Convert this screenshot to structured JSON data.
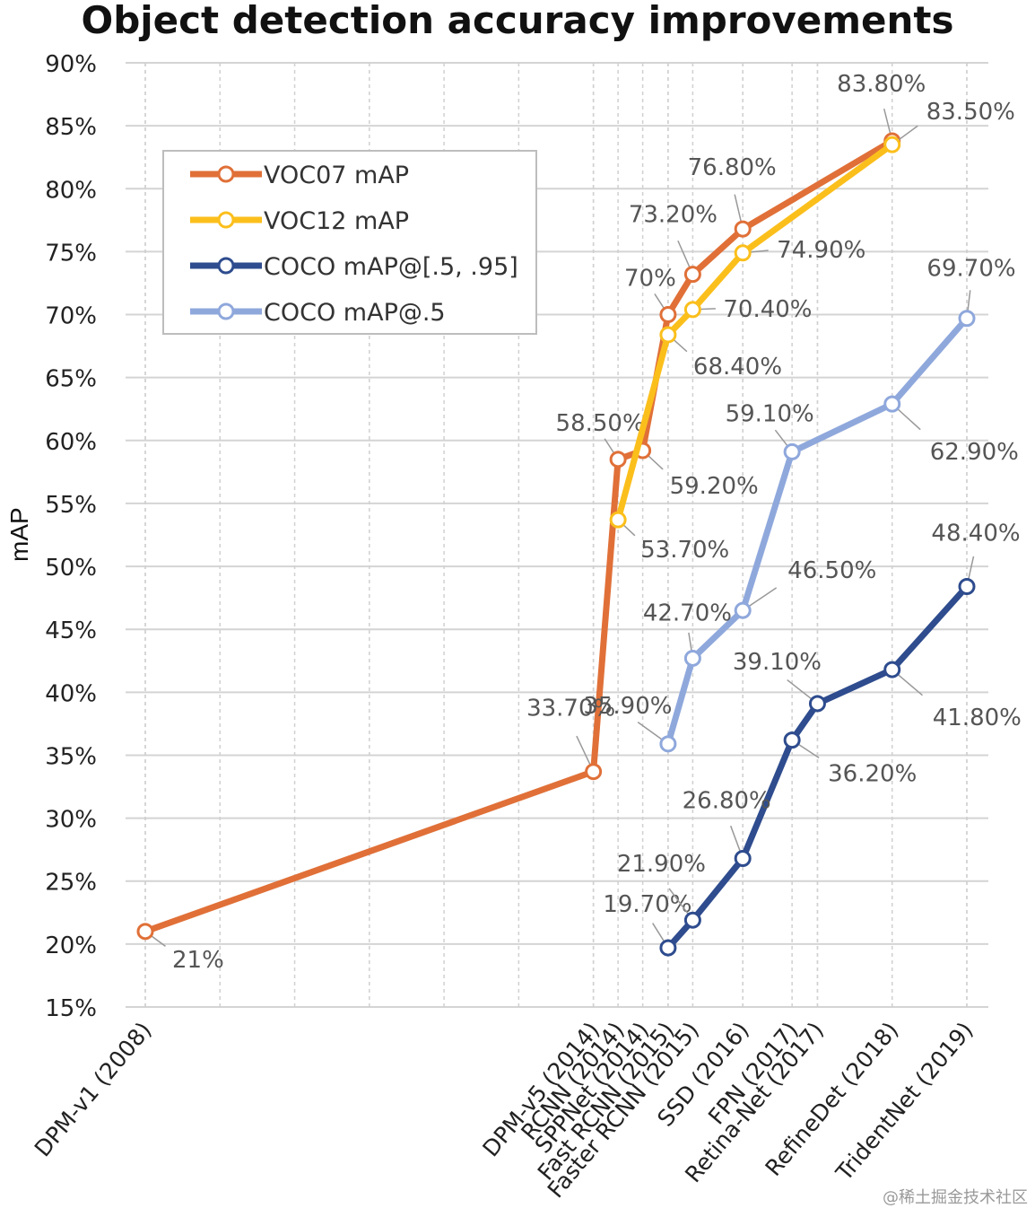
{
  "chart_data": {
    "type": "line",
    "title": "Object detection accuracy improvements",
    "xlabel": "",
    "ylabel": "mAP",
    "ylim": [
      15,
      90
    ],
    "yticks": [
      "15%",
      "20%",
      "25%",
      "30%",
      "35%",
      "40%",
      "45%",
      "50%",
      "55%",
      "60%",
      "65%",
      "70%",
      "75%",
      "80%",
      "85%",
      "90%"
    ],
    "categories": [
      "DPM-v1 (2008)",
      "DPM-v5 (2014)",
      "RCNN (2014)",
      "SPPNet (2014)",
      "Fast RCNN (2015)",
      "Faster RCNN (2015)",
      "SSD (2016)",
      "FPN (2017)",
      "Retina-Net (2017)",
      "RefineDet (2018)",
      "TridentNet (2019)"
    ],
    "category_years": [
      2008,
      2014,
      2014.33,
      2014.66,
      2015,
      2015.33,
      2016,
      2016.66,
      2017,
      2018,
      2019
    ],
    "grid": true,
    "legend_position": "top-left",
    "series": [
      {
        "name": "VOC07 mAP",
        "color": "#E07038",
        "points": [
          {
            "category": "DPM-v1 (2008)",
            "value": 21,
            "label": "21%"
          },
          {
            "category": "DPM-v5 (2014)",
            "value": 33.7,
            "label": "33.70%"
          },
          {
            "category": "RCNN (2014)",
            "value": 58.5,
            "label": "58.50%"
          },
          {
            "category": "SPPNet (2014)",
            "value": 59.2,
            "label": "59.20%"
          },
          {
            "category": "Fast RCNN (2015)",
            "value": 70,
            "label": "70%"
          },
          {
            "category": "Faster RCNN (2015)",
            "value": 73.2,
            "label": "73.20%"
          },
          {
            "category": "SSD (2016)",
            "value": 76.8,
            "label": "76.80%"
          },
          {
            "category": "RefineDet (2018)",
            "value": 83.8,
            "label": "83.80%"
          }
        ]
      },
      {
        "name": "VOC12 mAP",
        "color": "#FBBF1C",
        "points": [
          {
            "category": "RCNN (2014)",
            "value": 53.7,
            "label": "53.70%"
          },
          {
            "category": "Fast RCNN (2015)",
            "value": 68.4,
            "label": "68.40%"
          },
          {
            "category": "Faster RCNN (2015)",
            "value": 70.4,
            "label": "70.40%"
          },
          {
            "category": "SSD (2016)",
            "value": 74.9,
            "label": "74.90%"
          },
          {
            "category": "RefineDet (2018)",
            "value": 83.5,
            "label": "83.50%"
          }
        ]
      },
      {
        "name": "COCO mAP@[.5, .95]",
        "color": "#2E4C8E",
        "points": [
          {
            "category": "Fast RCNN (2015)",
            "value": 19.7,
            "label": "19.70%"
          },
          {
            "category": "Faster RCNN (2015)",
            "value": 21.9,
            "label": "21.90%"
          },
          {
            "category": "SSD (2016)",
            "value": 26.8,
            "label": "26.80%"
          },
          {
            "category": "FPN (2017)",
            "value": 36.2,
            "label": "36.20%"
          },
          {
            "category": "Retina-Net (2017)",
            "value": 39.1,
            "label": "39.10%"
          },
          {
            "category": "RefineDet (2018)",
            "value": 41.8,
            "label": "41.80%"
          },
          {
            "category": "TridentNet (2019)",
            "value": 48.4,
            "label": "48.40%"
          }
        ]
      },
      {
        "name": "COCO mAP@.5",
        "color": "#8FA8DC",
        "points": [
          {
            "category": "Fast RCNN (2015)",
            "value": 35.9,
            "label": "35.90%"
          },
          {
            "category": "Faster RCNN (2015)",
            "value": 42.7,
            "label": "42.70%"
          },
          {
            "category": "SSD (2016)",
            "value": 46.5,
            "label": "46.50%"
          },
          {
            "category": "FPN (2017)",
            "value": 59.1,
            "label": "59.10%"
          },
          {
            "category": "RefineDet (2018)",
            "value": 62.9,
            "label": "62.90%"
          },
          {
            "category": "TridentNet (2019)",
            "value": 69.7,
            "label": "69.70%"
          }
        ]
      }
    ]
  },
  "watermark": "@稀土掘金技术社区"
}
